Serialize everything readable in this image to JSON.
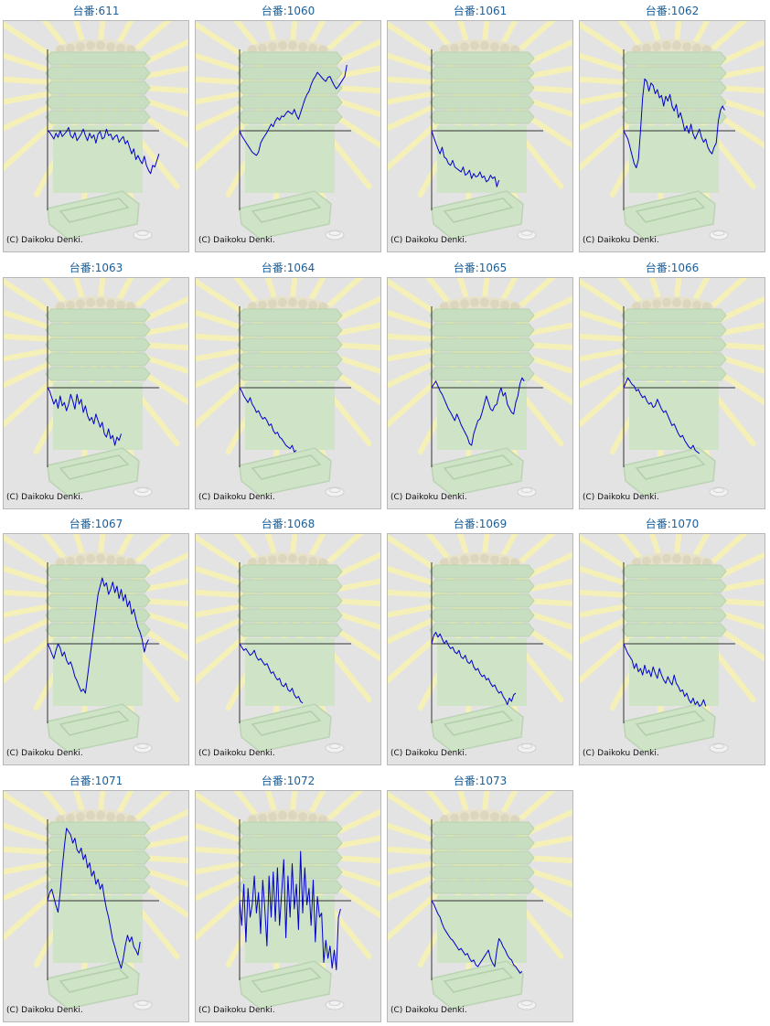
{
  "copyright": "(C) Daikoku Denki.",
  "colors": {
    "title": "#1a5f9a",
    "line": "#0000cc",
    "axis": "#333333",
    "bg": "#e3e3e3"
  },
  "charts": [
    {
      "title": "台番:611",
      "chart_data": {
        "type": "line",
        "values": [
          0,
          -2,
          -6,
          -10,
          -3,
          -8,
          0,
          -7,
          -4,
          -1,
          4,
          -6,
          -9,
          -2,
          -12,
          -8,
          -4,
          2,
          -6,
          -12,
          -3,
          -9,
          -5,
          -15,
          -4,
          -1,
          -10,
          -8,
          2,
          -6,
          -4,
          -11,
          -7,
          -5,
          -14,
          -10,
          -7,
          -16,
          -12,
          -20,
          -28,
          -22,
          -35,
          -30,
          -36,
          -40,
          -31,
          -42,
          -48,
          -52,
          -42,
          -44,
          -36,
          -28
        ]
      }
    },
    {
      "title": "台番:1060",
      "chart_data": {
        "type": "line",
        "values": [
          0,
          -6,
          -10,
          -14,
          -18,
          -22,
          -26,
          -28,
          -30,
          -26,
          -15,
          -10,
          -6,
          -2,
          3,
          8,
          5,
          12,
          16,
          13,
          18,
          17,
          21,
          24,
          22,
          20,
          26,
          19,
          14,
          22,
          30,
          38,
          44,
          48,
          56,
          62,
          66,
          71,
          68,
          65,
          62,
          60,
          65,
          66,
          60,
          55,
          51,
          54,
          58,
          62,
          66,
          80
        ]
      }
    },
    {
      "title": "台番:1061",
      "chart_data": {
        "type": "line",
        "values": [
          0,
          -8,
          -15,
          -22,
          -28,
          -20,
          -32,
          -34,
          -40,
          -42,
          -36,
          -44,
          -46,
          -48,
          -50,
          -44,
          -54,
          -52,
          -48,
          -58,
          -52,
          -56,
          -55,
          -50,
          -57,
          -55,
          -62,
          -60,
          -54,
          -58,
          -56,
          -68,
          -60
        ]
      }
    },
    {
      "title": "台番:1062",
      "chart_data": {
        "type": "line",
        "values": [
          0,
          -5,
          -10,
          -20,
          -30,
          -40,
          -45,
          -35,
          0,
          40,
          63,
          60,
          48,
          58,
          55,
          45,
          50,
          40,
          43,
          30,
          42,
          36,
          44,
          30,
          24,
          32,
          16,
          22,
          12,
          0,
          6,
          -3,
          8,
          -4,
          -10,
          -4,
          2,
          -8,
          -14,
          -10,
          -20,
          -25,
          -28,
          -20,
          -15,
          12,
          25,
          30,
          25
        ]
      }
    },
    {
      "title": "台番:1063",
      "chart_data": {
        "type": "line",
        "values": [
          0,
          -4,
          -12,
          -20,
          -14,
          -25,
          -10,
          -22,
          -18,
          -28,
          -20,
          -8,
          -16,
          -26,
          -8,
          -20,
          -14,
          -30,
          -22,
          -34,
          -40,
          -36,
          -44,
          -32,
          -40,
          -48,
          -42,
          -56,
          -60,
          -50,
          -62,
          -58,
          -70,
          -60,
          -64,
          -56
        ]
      }
    },
    {
      "title": "台番:1064",
      "chart_data": {
        "type": "line",
        "values": [
          0,
          -4,
          -10,
          -14,
          -18,
          -12,
          -20,
          -24,
          -30,
          -28,
          -34,
          -38,
          -36,
          -40,
          -46,
          -44,
          -52,
          -56,
          -54,
          -60,
          -62,
          -66,
          -70,
          -72,
          -74,
          -70,
          -78,
          -76
        ]
      }
    },
    {
      "title": "台番:1065",
      "chart_data": {
        "type": "line",
        "values": [
          0,
          4,
          8,
          2,
          -4,
          -8,
          -14,
          -20,
          -26,
          -30,
          -35,
          -40,
          -32,
          -38,
          -45,
          -50,
          -55,
          -60,
          -68,
          -70,
          -56,
          -48,
          -40,
          -38,
          -30,
          -20,
          -10,
          -18,
          -26,
          -28,
          -22,
          -20,
          -8,
          0,
          -10,
          -6,
          -20,
          -25,
          -30,
          -32,
          -18,
          -10,
          5,
          12,
          8
        ]
      }
    },
    {
      "title": "台番:1066",
      "chart_data": {
        "type": "line",
        "values": [
          0,
          6,
          12,
          8,
          4,
          2,
          -4,
          -2,
          -8,
          -12,
          -10,
          -16,
          -20,
          -18,
          -24,
          -22,
          -14,
          -20,
          -26,
          -30,
          -28,
          -34,
          -40,
          -46,
          -44,
          -50,
          -56,
          -60,
          -58,
          -64,
          -68,
          -72,
          -74,
          -70,
          -76,
          -78,
          -80
        ]
      }
    },
    {
      "title": "台番:1067",
      "chart_data": {
        "type": "line",
        "values": [
          0,
          -5,
          -12,
          -18,
          -8,
          0,
          -5,
          -15,
          -10,
          -20,
          -25,
          -22,
          -30,
          -40,
          -45,
          -52,
          -58,
          -55,
          -60,
          -40,
          -20,
          0,
          20,
          40,
          60,
          70,
          80,
          70,
          74,
          60,
          66,
          75,
          62,
          70,
          55,
          66,
          52,
          60,
          45,
          52,
          36,
          42,
          30,
          20,
          14,
          5,
          -10,
          0,
          5
        ]
      }
    },
    {
      "title": "台番:1068",
      "chart_data": {
        "type": "line",
        "values": [
          0,
          -4,
          -8,
          -6,
          -10,
          -14,
          -12,
          -8,
          -16,
          -20,
          -18,
          -22,
          -26,
          -24,
          -30,
          -36,
          -34,
          -40,
          -44,
          -42,
          -50,
          -52,
          -48,
          -56,
          -58,
          -54,
          -62,
          -66,
          -64,
          -70,
          -72
        ]
      }
    },
    {
      "title": "台番:1069",
      "chart_data": {
        "type": "line",
        "values": [
          0,
          10,
          14,
          8,
          12,
          6,
          0,
          4,
          -2,
          -6,
          -4,
          -10,
          -12,
          -8,
          -16,
          -18,
          -14,
          -22,
          -24,
          -20,
          -28,
          -32,
          -30,
          -36,
          -40,
          -38,
          -44,
          -42,
          -48,
          -52,
          -50,
          -56,
          -60,
          -58,
          -64,
          -68,
          -74,
          -66,
          -70,
          -62,
          -60
        ]
      }
    },
    {
      "title": "台番:1070",
      "chart_data": {
        "type": "line",
        "values": [
          0,
          -6,
          -12,
          -16,
          -20,
          -30,
          -24,
          -34,
          -30,
          -38,
          -26,
          -36,
          -32,
          -40,
          -28,
          -36,
          -42,
          -30,
          -38,
          -44,
          -48,
          -40,
          -46,
          -50,
          -38,
          -48,
          -52,
          -58,
          -56,
          -64,
          -60,
          -68,
          -72,
          -66,
          -74,
          -70,
          -76,
          -74,
          -68,
          -76
        ]
      }
    },
    {
      "title": "台番:1071",
      "chart_data": {
        "type": "line",
        "values": [
          0,
          10,
          14,
          4,
          -6,
          -14,
          10,
          40,
          66,
          88,
          84,
          80,
          70,
          76,
          62,
          58,
          64,
          50,
          56,
          40,
          46,
          30,
          36,
          20,
          26,
          14,
          20,
          4,
          -10,
          -20,
          -34,
          -48,
          -56,
          -66,
          -74,
          -82,
          -70,
          -54,
          -42,
          -50,
          -44,
          -56,
          -60,
          -66,
          -50
        ]
      }
    },
    {
      "title": "台番:1072",
      "chart_data": {
        "type": "line",
        "values": [
          0,
          -30,
          20,
          -50,
          15,
          -20,
          -5,
          30,
          -15,
          10,
          -40,
          25,
          -10,
          -55,
          30,
          -20,
          35,
          -25,
          40,
          -30,
          10,
          50,
          -45,
          30,
          -20,
          45,
          -10,
          20,
          -35,
          60,
          -15,
          40,
          -5,
          15,
          -30,
          25,
          -50,
          5,
          -20,
          -15,
          -75,
          -48,
          -70,
          -55,
          -82,
          -60,
          -84,
          -20,
          -10
        ]
      }
    },
    {
      "title": "台番:1073",
      "chart_data": {
        "type": "line",
        "values": [
          0,
          -4,
          -10,
          -16,
          -20,
          -28,
          -34,
          -38,
          -42,
          -46,
          -48,
          -52,
          -56,
          -60,
          -58,
          -62,
          -66,
          -64,
          -70,
          -74,
          -72,
          -78,
          -80,
          -76,
          -72,
          -68,
          -64,
          -60,
          -70,
          -76,
          -80,
          -60,
          -46,
          -50,
          -56,
          -60,
          -66,
          -70,
          -72,
          -78,
          -80,
          -84,
          -88,
          -86
        ]
      }
    }
  ]
}
